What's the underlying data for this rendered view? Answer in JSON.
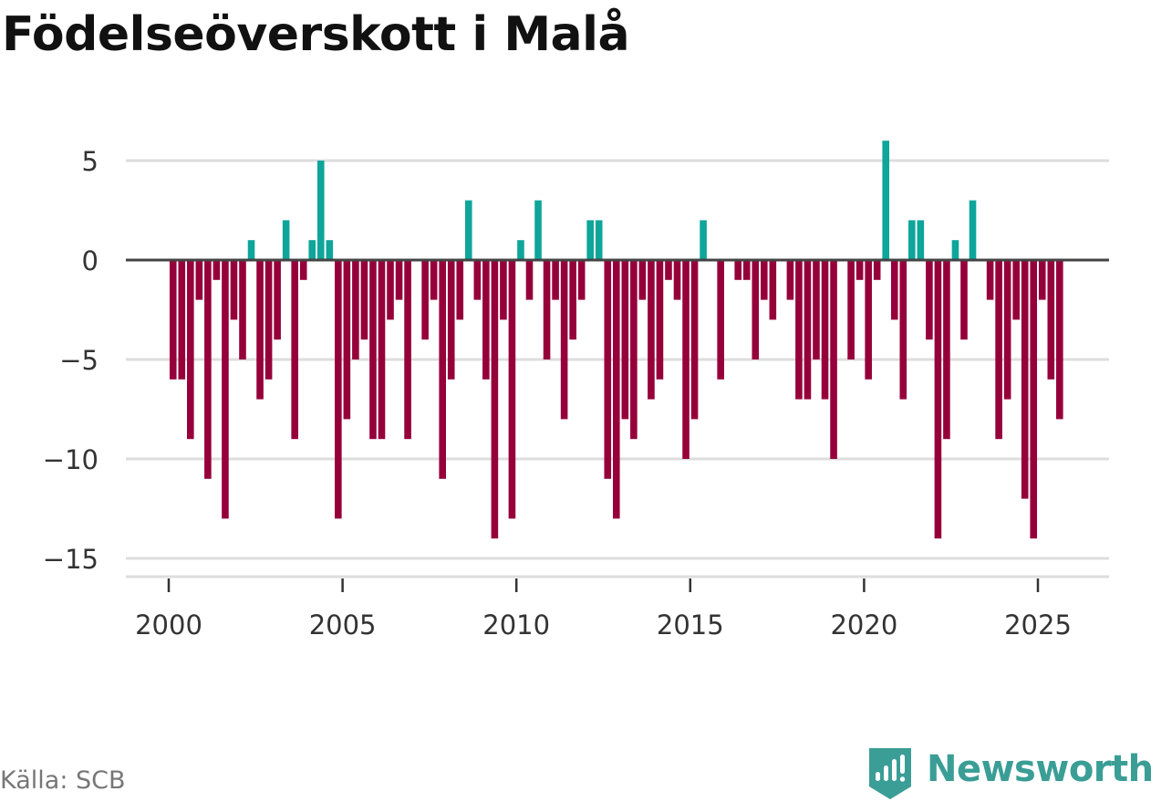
{
  "title": "Födelseöverskott i Malå",
  "source": "Källa: SCB",
  "brand": {
    "name": "Newsworthy",
    "color": "#3a9e96",
    "icon": "newsworthy-logo-icon"
  },
  "colors": {
    "positive": "#0ea59a",
    "negative": "#96003a",
    "grid": "#dddddd",
    "zero": "#444444",
    "axis": "#333333"
  },
  "chart_data": {
    "type": "bar",
    "title": "Födelseöverskott i Malå",
    "xlabel": "",
    "ylabel": "",
    "x_ticks": [
      2000,
      2005,
      2010,
      2015,
      2020,
      2025
    ],
    "x_tick_labels": [
      "2000",
      "2005",
      "2010",
      "2015",
      "2020",
      "2025"
    ],
    "y_ticks": [
      5,
      0,
      -5,
      -10,
      -15
    ],
    "y_tick_labels": [
      "5",
      "0",
      "−5",
      "−10",
      "−15"
    ],
    "ylim": [
      -15.5,
      6
    ],
    "xlim": [
      1999.2,
      2027.5
    ],
    "grid": true,
    "legend": "none",
    "start": 2000.125,
    "step": 0.25,
    "period": "quarter",
    "values": [
      -6,
      -6,
      -9,
      -2,
      -11,
      -1,
      -13,
      -3,
      -5,
      1,
      -7,
      -6,
      -4,
      2,
      -9,
      -1,
      1,
      5,
      1,
      -13,
      -8,
      -5,
      -4,
      -9,
      -9,
      -3,
      -2,
      -9,
      0,
      -4,
      -2,
      -11,
      -6,
      -3,
      3,
      -2,
      -6,
      -14,
      -3,
      -13,
      1,
      -2,
      3,
      -5,
      -2,
      -8,
      -4,
      -2,
      2,
      2,
      -11,
      -13,
      -8,
      -9,
      -2,
      -7,
      -6,
      -1,
      -2,
      -10,
      -8,
      2,
      0,
      -6,
      0,
      -1,
      -1,
      -5,
      -2,
      -3,
      0,
      -2,
      -7,
      -7,
      -5,
      -7,
      -10,
      0,
      -5,
      -1,
      -6,
      -1,
      6,
      -3,
      -7,
      2,
      2,
      -4,
      -14,
      -9,
      1,
      -4,
      3,
      0,
      -2,
      -9,
      -7,
      -3,
      -12,
      -14,
      -2,
      -6,
      -8
    ]
  }
}
